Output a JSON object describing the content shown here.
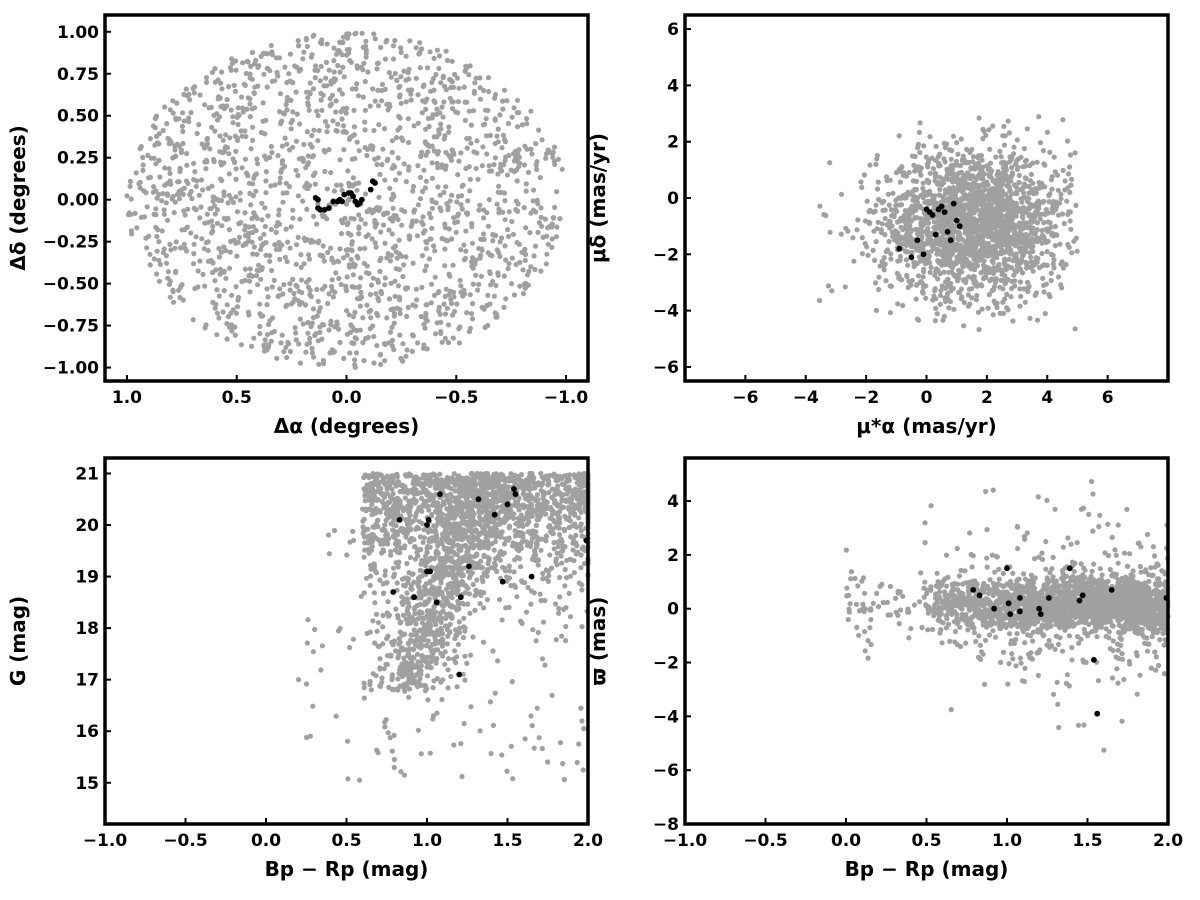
{
  "colors": {
    "field": "#a0a0a0",
    "members": "#000000",
    "frame": "#000000"
  },
  "chart_data": [
    {
      "id": "sky",
      "type": "scatter",
      "xlabel": "Δα (degrees)",
      "ylabel": "Δδ (degrees)",
      "xlim": [
        1.1,
        -1.1
      ],
      "ylim": [
        -1.08,
        1.1
      ],
      "x_inverted": true,
      "xticks": [
        1.0,
        0.5,
        0.0,
        -0.5,
        -1.0
      ],
      "xtick_labels": [
        "1.0",
        "0.5",
        "0.0",
        "−0.5",
        "−1.0"
      ],
      "yticks": [
        -1.0,
        -0.75,
        -0.5,
        -0.25,
        0.0,
        0.25,
        0.5,
        0.75,
        1.0
      ],
      "ytick_labels": [
        "−1.00",
        "−0.75",
        "−0.50",
        "−0.25",
        "0.00",
        "0.25",
        "0.50",
        "0.75",
        "1.00"
      ],
      "field": {
        "distribution": "disk",
        "center": [
          0,
          0
        ],
        "radius": 1.0,
        "count": 1800
      },
      "members": {
        "x": [
          0.14,
          0.13,
          0.12,
          0.1,
          0.08,
          0.06,
          0.04,
          0.02,
          0.01,
          -0.01,
          -0.03,
          -0.04,
          -0.06,
          -0.07,
          -0.05,
          -0.02,
          -0.11,
          -0.13,
          -0.12,
          0.13,
          0.03
        ],
        "y": [
          0.01,
          -0.05,
          -0.06,
          -0.06,
          -0.05,
          -0.01,
          -0.01,
          -0.01,
          0.03,
          0.04,
          0.02,
          -0.01,
          -0.02,
          0.0,
          -0.03,
          0.04,
          0.06,
          0.1,
          0.11,
          0.0,
          0.0
        ]
      }
    },
    {
      "id": "proper-motion",
      "type": "scatter",
      "xlabel": "μ*α (mas/yr)",
      "ylabel": "μδ (mas/yr)",
      "xlim": [
        -8,
        8
      ],
      "ylim": [
        -6.5,
        6.5
      ],
      "xticks": [
        -6,
        -4,
        -2,
        0,
        2,
        4,
        6
      ],
      "xtick_labels": [
        "−6",
        "−4",
        "−2",
        "0",
        "2",
        "4",
        "6"
      ],
      "yticks": [
        -6,
        -4,
        -2,
        0,
        2,
        4,
        6
      ],
      "ytick_labels": [
        "−6",
        "−4",
        "−2",
        "0",
        "2",
        "4",
        "6"
      ],
      "field": {
        "distribution": "gaussian",
        "center": [
          1.6,
          -0.9
        ],
        "sigma": [
          1.6,
          1.3
        ],
        "bounds_x": [
          -4.8,
          5.0
        ],
        "bounds_y": [
          -4.9,
          4.6
        ],
        "count": 2000
      },
      "members": {
        "x": [
          -0.9,
          -0.5,
          -0.3,
          0.0,
          0.1,
          0.2,
          0.3,
          0.5,
          0.6,
          0.8,
          0.9,
          1.0,
          1.1,
          0.7,
          0.4,
          -0.1
        ],
        "y": [
          -1.8,
          -2.1,
          -1.5,
          -0.4,
          -0.5,
          -0.6,
          -1.3,
          -0.3,
          -0.5,
          -1.5,
          -0.2,
          -0.8,
          -1.0,
          -1.2,
          -0.4,
          -2.0
        ]
      }
    },
    {
      "id": "cmd",
      "type": "scatter",
      "xlabel": "Bp − Rp (mag)",
      "ylabel": "G (mag)",
      "xlim": [
        -1.0,
        2.0
      ],
      "ylim": [
        14.2,
        21.3
      ],
      "xticks": [
        -1.0,
        -0.5,
        0.0,
        0.5,
        1.0,
        1.5,
        2.0
      ],
      "xtick_labels": [
        "−1.0",
        "−0.5",
        "0.0",
        "0.5",
        "1.0",
        "1.5",
        "2.0"
      ],
      "yticks": [
        15,
        16,
        17,
        18,
        19,
        20,
        21
      ],
      "ytick_labels": [
        "15",
        "16",
        "17",
        "18",
        "19",
        "20",
        "21"
      ],
      "field": {
        "distribution": "cmd",
        "count": 2400
      },
      "members": {
        "x": [
          0.83,
          1.0,
          1.01,
          1.08,
          1.32,
          1.42,
          1.5,
          1.54,
          1.55,
          1.99,
          0.79,
          1.02,
          1.0,
          1.26,
          1.21,
          0.92,
          1.06,
          1.47,
          1.65,
          1.2
        ],
        "y": [
          20.1,
          20.0,
          20.1,
          20.6,
          20.5,
          20.2,
          20.4,
          20.7,
          20.6,
          19.7,
          18.7,
          19.1,
          19.1,
          19.2,
          18.6,
          18.6,
          18.5,
          18.9,
          19.0,
          17.1
        ]
      }
    },
    {
      "id": "parallax",
      "type": "scatter",
      "xlabel": "Bp − Rp (mag)",
      "ylabel": "ϖ (mas)",
      "xlim": [
        -1.0,
        2.0
      ],
      "ylim": [
        -8.0,
        5.6
      ],
      "xticks": [
        -1.0,
        -0.5,
        0.0,
        0.5,
        1.0,
        1.5,
        2.0
      ],
      "xtick_labels": [
        "−1.0",
        "−0.5",
        "0.0",
        "0.5",
        "1.0",
        "1.5",
        "2.0"
      ],
      "yticks": [
        -8,
        -6,
        -4,
        -2,
        0,
        2,
        4
      ],
      "ytick_labels": [
        "−8",
        "−6",
        "−4",
        "−2",
        "0",
        "2",
        "4"
      ],
      "field": {
        "distribution": "parallax",
        "count": 2400
      },
      "members": {
        "x": [
          0.79,
          0.83,
          0.92,
          1.0,
          1.01,
          1.02,
          1.08,
          1.2,
          1.21,
          1.26,
          1.39,
          1.45,
          1.47,
          1.54,
          1.56,
          1.65,
          1.99,
          1.08
        ],
        "y": [
          0.7,
          0.5,
          0.0,
          1.5,
          0.2,
          -0.2,
          0.4,
          0.0,
          -0.2,
          0.4,
          1.5,
          0.3,
          0.5,
          -1.9,
          -3.9,
          0.7,
          0.4,
          -0.1
        ]
      }
    }
  ]
}
